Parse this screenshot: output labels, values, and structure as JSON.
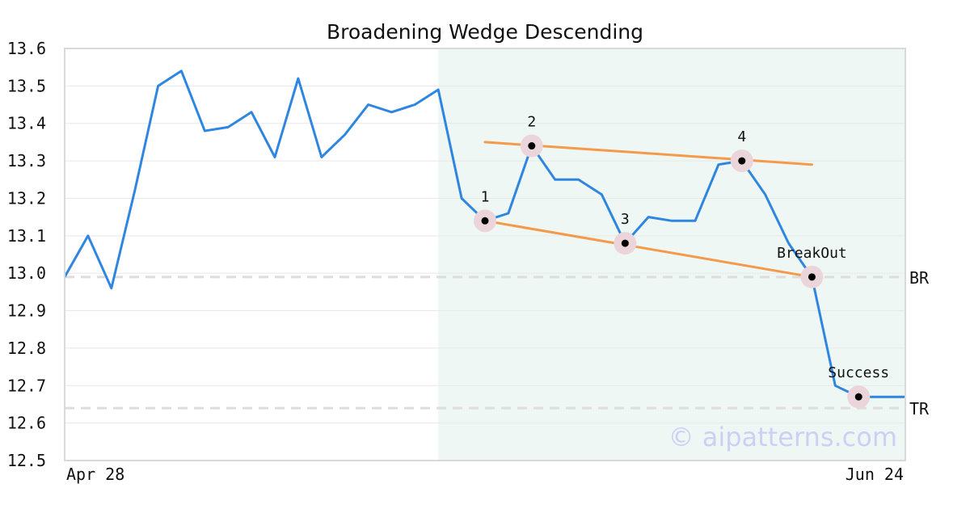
{
  "chart_data": {
    "type": "line",
    "title": "Broadening Wedge Descending",
    "x_start_label": "Apr 28",
    "x_end_label": "Jun 24",
    "ylim": [
      12.5,
      13.6
    ],
    "yticks": [
      "12.5",
      "12.6",
      "12.7",
      "12.8",
      "12.9",
      "13.0",
      "13.1",
      "13.2",
      "13.3",
      "13.4",
      "13.5",
      "13.6"
    ],
    "grid": true,
    "series": [
      {
        "values": [
          12.99,
          13.1,
          12.96,
          13.22,
          13.5,
          13.54,
          13.38,
          13.39,
          13.43,
          13.31,
          13.52,
          13.31,
          13.37,
          13.45,
          13.43,
          13.45,
          13.49,
          13.2,
          13.14,
          13.16,
          13.34,
          13.25,
          13.25,
          13.21,
          13.08,
          13.15,
          13.14,
          13.14,
          13.29,
          13.3,
          13.21,
          13.08,
          12.99,
          12.7,
          12.67,
          12.67,
          12.67
        ]
      }
    ],
    "pattern_region": {
      "start_index": 16,
      "end_index": 36
    },
    "trendlines": [
      {
        "from": {
          "index": 18,
          "value": 13.35
        },
        "to": {
          "index": 32,
          "value": 13.29
        },
        "color": "#f5994a"
      },
      {
        "from": {
          "index": 18,
          "value": 13.14
        },
        "to": {
          "index": 32,
          "value": 12.99
        },
        "color": "#f5994a"
      }
    ],
    "markers": [
      {
        "index": 18,
        "value": 13.14,
        "label": "1"
      },
      {
        "index": 20,
        "value": 13.34,
        "label": "2"
      },
      {
        "index": 24,
        "value": 13.08,
        "label": "3"
      },
      {
        "index": 29,
        "value": 13.3,
        "label": "4"
      },
      {
        "index": 32,
        "value": 12.99,
        "label": "BreakOut"
      },
      {
        "index": 34,
        "value": 12.67,
        "label": "Success"
      }
    ],
    "reference_lines": [
      {
        "value": 12.99,
        "label": "BR"
      },
      {
        "value": 12.64,
        "label": "TR"
      }
    ],
    "watermark": "© aipatterns.com",
    "colors": {
      "line": "#2f86e0",
      "trendline": "#f5994a",
      "region": "#eef7f3",
      "marker_halo": "#ecd5da",
      "marker_dot": "#000000",
      "reference": "#dddddd",
      "grid": "#e8e8e8",
      "frame": "#d9d9d9"
    }
  }
}
